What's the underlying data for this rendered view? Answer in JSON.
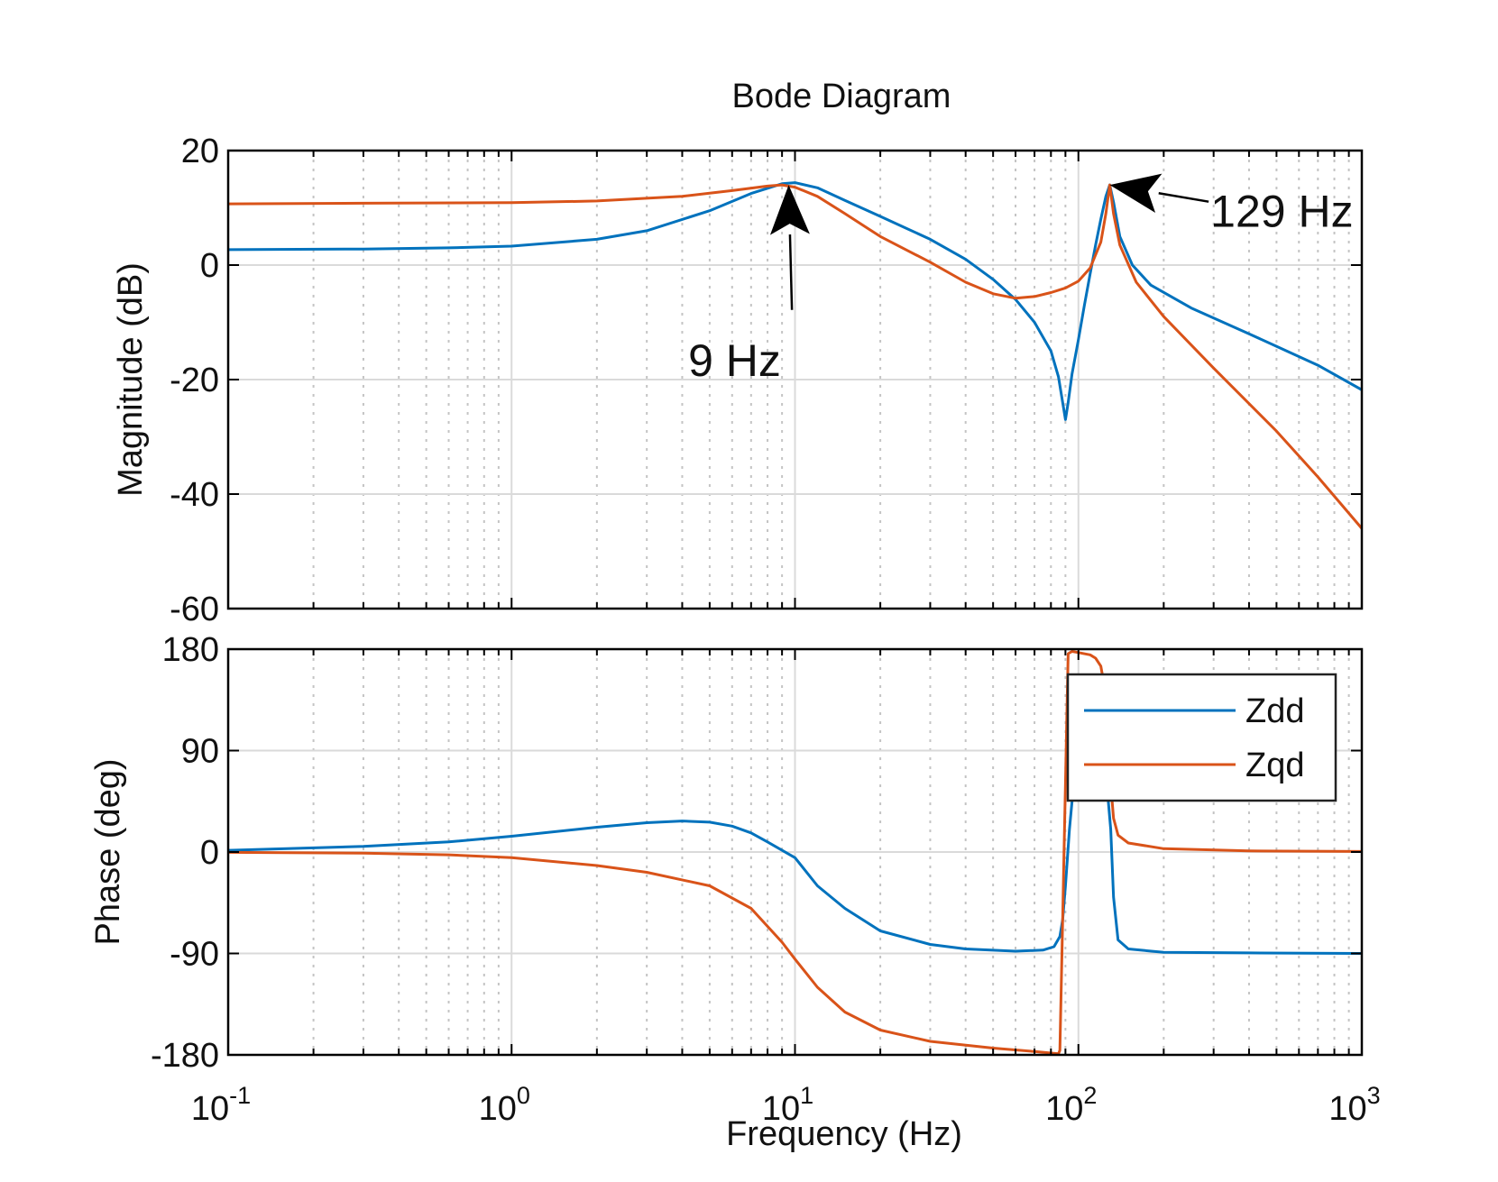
{
  "chart_data": {
    "type": "line",
    "title": "Bode Diagram",
    "xlabel": "Frequency  (Hz)",
    "xscale": "log",
    "xlim": [
      0.1,
      1000
    ],
    "x_ticks": [
      {
        "base": "10",
        "exp": "-1"
      },
      {
        "base": "10",
        "exp": "0"
      },
      {
        "base": "10",
        "exp": "1"
      },
      {
        "base": "10",
        "exp": "2"
      },
      {
        "base": "10",
        "exp": "3"
      }
    ],
    "colors": {
      "Zdd": "#0072BD",
      "Zqd": "#D95319"
    },
    "legend": {
      "position": "top-right (phase panel)",
      "entries": [
        "Zdd",
        "Zqd"
      ]
    },
    "panels": [
      {
        "id": "magnitude",
        "ylabel": "Magnitude (dB)",
        "ylim": [
          -60,
          20
        ],
        "yticks": [
          20,
          0,
          -20,
          -40,
          -60
        ],
        "ytick_labels": [
          "20",
          "0",
          "-20",
          "-40",
          "-60"
        ],
        "series": [
          {
            "name": "Zdd",
            "points": [
              [
                0.1,
                2.7
              ],
              [
                0.3,
                2.8
              ],
              [
                0.6,
                3.0
              ],
              [
                1,
                3.3
              ],
              [
                2,
                4.5
              ],
              [
                3,
                6.0
              ],
              [
                5,
                9.5
              ],
              [
                7,
                12.5
              ],
              [
                9,
                14.2
              ],
              [
                10,
                14.4
              ],
              [
                12,
                13.5
              ],
              [
                15,
                11.3
              ],
              [
                20,
                8.5
              ],
              [
                30,
                4.5
              ],
              [
                40,
                1.0
              ],
              [
                50,
                -2.5
              ],
              [
                60,
                -6.0
              ],
              [
                70,
                -10.0
              ],
              [
                80,
                -15.0
              ],
              [
                85,
                -19.5
              ],
              [
                88,
                -24.0
              ],
              [
                90,
                -27.0
              ],
              [
                92,
                -24.0
              ],
              [
                95,
                -19.0
              ],
              [
                100,
                -13.0
              ],
              [
                105,
                -7.0
              ],
              [
                110,
                -1.5
              ],
              [
                115,
                3.5
              ],
              [
                120,
                8.0
              ],
              [
                125,
                12.0
              ],
              [
                129,
                14.0
              ],
              [
                133,
                11.0
              ],
              [
                140,
                5.0
              ],
              [
                155,
                0.0
              ],
              [
                180,
                -3.5
              ],
              [
                250,
                -7.5
              ],
              [
                400,
                -12.0
              ],
              [
                700,
                -17.5
              ],
              [
                1000,
                -21.8
              ]
            ]
          },
          {
            "name": "Zqd",
            "points": [
              [
                0.1,
                10.7
              ],
              [
                0.3,
                10.8
              ],
              [
                1,
                10.9
              ],
              [
                2,
                11.2
              ],
              [
                4,
                12.0
              ],
              [
                6,
                13.0
              ],
              [
                8,
                13.8
              ],
              [
                9,
                14.0
              ],
              [
                10,
                13.6
              ],
              [
                12,
                12.0
              ],
              [
                15,
                9.0
              ],
              [
                20,
                5.0
              ],
              [
                30,
                0.5
              ],
              [
                40,
                -3.0
              ],
              [
                50,
                -5.0
              ],
              [
                60,
                -5.8
              ],
              [
                70,
                -5.5
              ],
              [
                80,
                -4.8
              ],
              [
                90,
                -4.0
              ],
              [
                100,
                -2.8
              ],
              [
                110,
                -0.5
              ],
              [
                120,
                4.0
              ],
              [
                125,
                9.0
              ],
              [
                129,
                14.0
              ],
              [
                133,
                9.0
              ],
              [
                140,
                3.5
              ],
              [
                160,
                -3.0
              ],
              [
                200,
                -9.0
              ],
              [
                300,
                -18.0
              ],
              [
                500,
                -29.0
              ],
              [
                700,
                -37.0
              ],
              [
                1000,
                -46.0
              ]
            ]
          }
        ],
        "annotations": [
          {
            "text": "9 Hz",
            "x": 9.5,
            "y": 14.0,
            "label_x": 4.2,
            "label_y": -16.5
          },
          {
            "text": "129 Hz",
            "x": 129,
            "y": 14.0,
            "label_x": 310,
            "label_y": 9.5
          }
        ]
      },
      {
        "id": "phase",
        "ylabel": "Phase (deg)",
        "ylim": [
          -180,
          180
        ],
        "yticks": [
          180,
          90,
          0,
          -90,
          -180
        ],
        "ytick_labels": [
          "180",
          "90",
          "0",
          "-90",
          "-180"
        ],
        "series": [
          {
            "name": "Zdd",
            "points": [
              [
                0.1,
                1.5
              ],
              [
                0.3,
                5.0
              ],
              [
                0.6,
                9.0
              ],
              [
                1,
                14.0
              ],
              [
                2,
                22.0
              ],
              [
                3,
                26.0
              ],
              [
                4,
                27.5
              ],
              [
                5,
                26.5
              ],
              [
                6,
                23.0
              ],
              [
                7,
                17.0
              ],
              [
                8,
                9.0
              ],
              [
                10,
                -5.0
              ],
              [
                12,
                -30.0
              ],
              [
                15,
                -50.0
              ],
              [
                20,
                -70.0
              ],
              [
                30,
                -82.0
              ],
              [
                40,
                -86.0
              ],
              [
                60,
                -88.0
              ],
              [
                75,
                -87.0
              ],
              [
                82,
                -84.0
              ],
              [
                86,
                -75.0
              ],
              [
                88,
                -60.0
              ],
              [
                90,
                -30.0
              ],
              [
                93,
                20.0
              ],
              [
                97,
                70.0
              ],
              [
                100,
                88.0
              ],
              [
                110,
                90.0
              ],
              [
                120,
                85.0
              ],
              [
                125,
                70.0
              ],
              [
                130,
                20.0
              ],
              [
                133,
                -40.0
              ],
              [
                138,
                -78.0
              ],
              [
                150,
                -86.0
              ],
              [
                200,
                -89.0
              ],
              [
                400,
                -89.5
              ],
              [
                1000,
                -90.0
              ]
            ]
          },
          {
            "name": "Zqd",
            "points": [
              [
                0.1,
                -0.3
              ],
              [
                0.3,
                -1.0
              ],
              [
                0.6,
                -2.5
              ],
              [
                1,
                -5.0
              ],
              [
                2,
                -12.0
              ],
              [
                3,
                -18.0
              ],
              [
                5,
                -30.0
              ],
              [
                7,
                -50.0
              ],
              [
                9,
                -80.0
              ],
              [
                10,
                -95.0
              ],
              [
                12,
                -120.0
              ],
              [
                15,
                -142.0
              ],
              [
                20,
                -158.0
              ],
              [
                30,
                -168.0
              ],
              [
                50,
                -174.0
              ],
              [
                70,
                -177.0
              ],
              [
                85,
                -179.0
              ],
              [
                86,
                -176.0
              ],
              [
                87,
                -120.0
              ],
              [
                88,
                -60.0
              ],
              [
                89,
                0.0
              ],
              [
                90,
                60.0
              ],
              [
                91,
                120.0
              ],
              [
                92,
                176.0
              ],
              [
                95,
                178.0
              ],
              [
                100,
                177.0
              ],
              [
                110,
                175.0
              ],
              [
                115,
                172.0
              ],
              [
                120,
                165.0
              ],
              [
                125,
                140.0
              ],
              [
                128,
                110.0
              ],
              [
                130,
                60.0
              ],
              [
                133,
                30.0
              ],
              [
                138,
                15.0
              ],
              [
                150,
                8.0
              ],
              [
                200,
                3.0
              ],
              [
                400,
                1.0
              ],
              [
                1000,
                0.5
              ]
            ]
          }
        ],
        "annotations": []
      }
    ]
  }
}
